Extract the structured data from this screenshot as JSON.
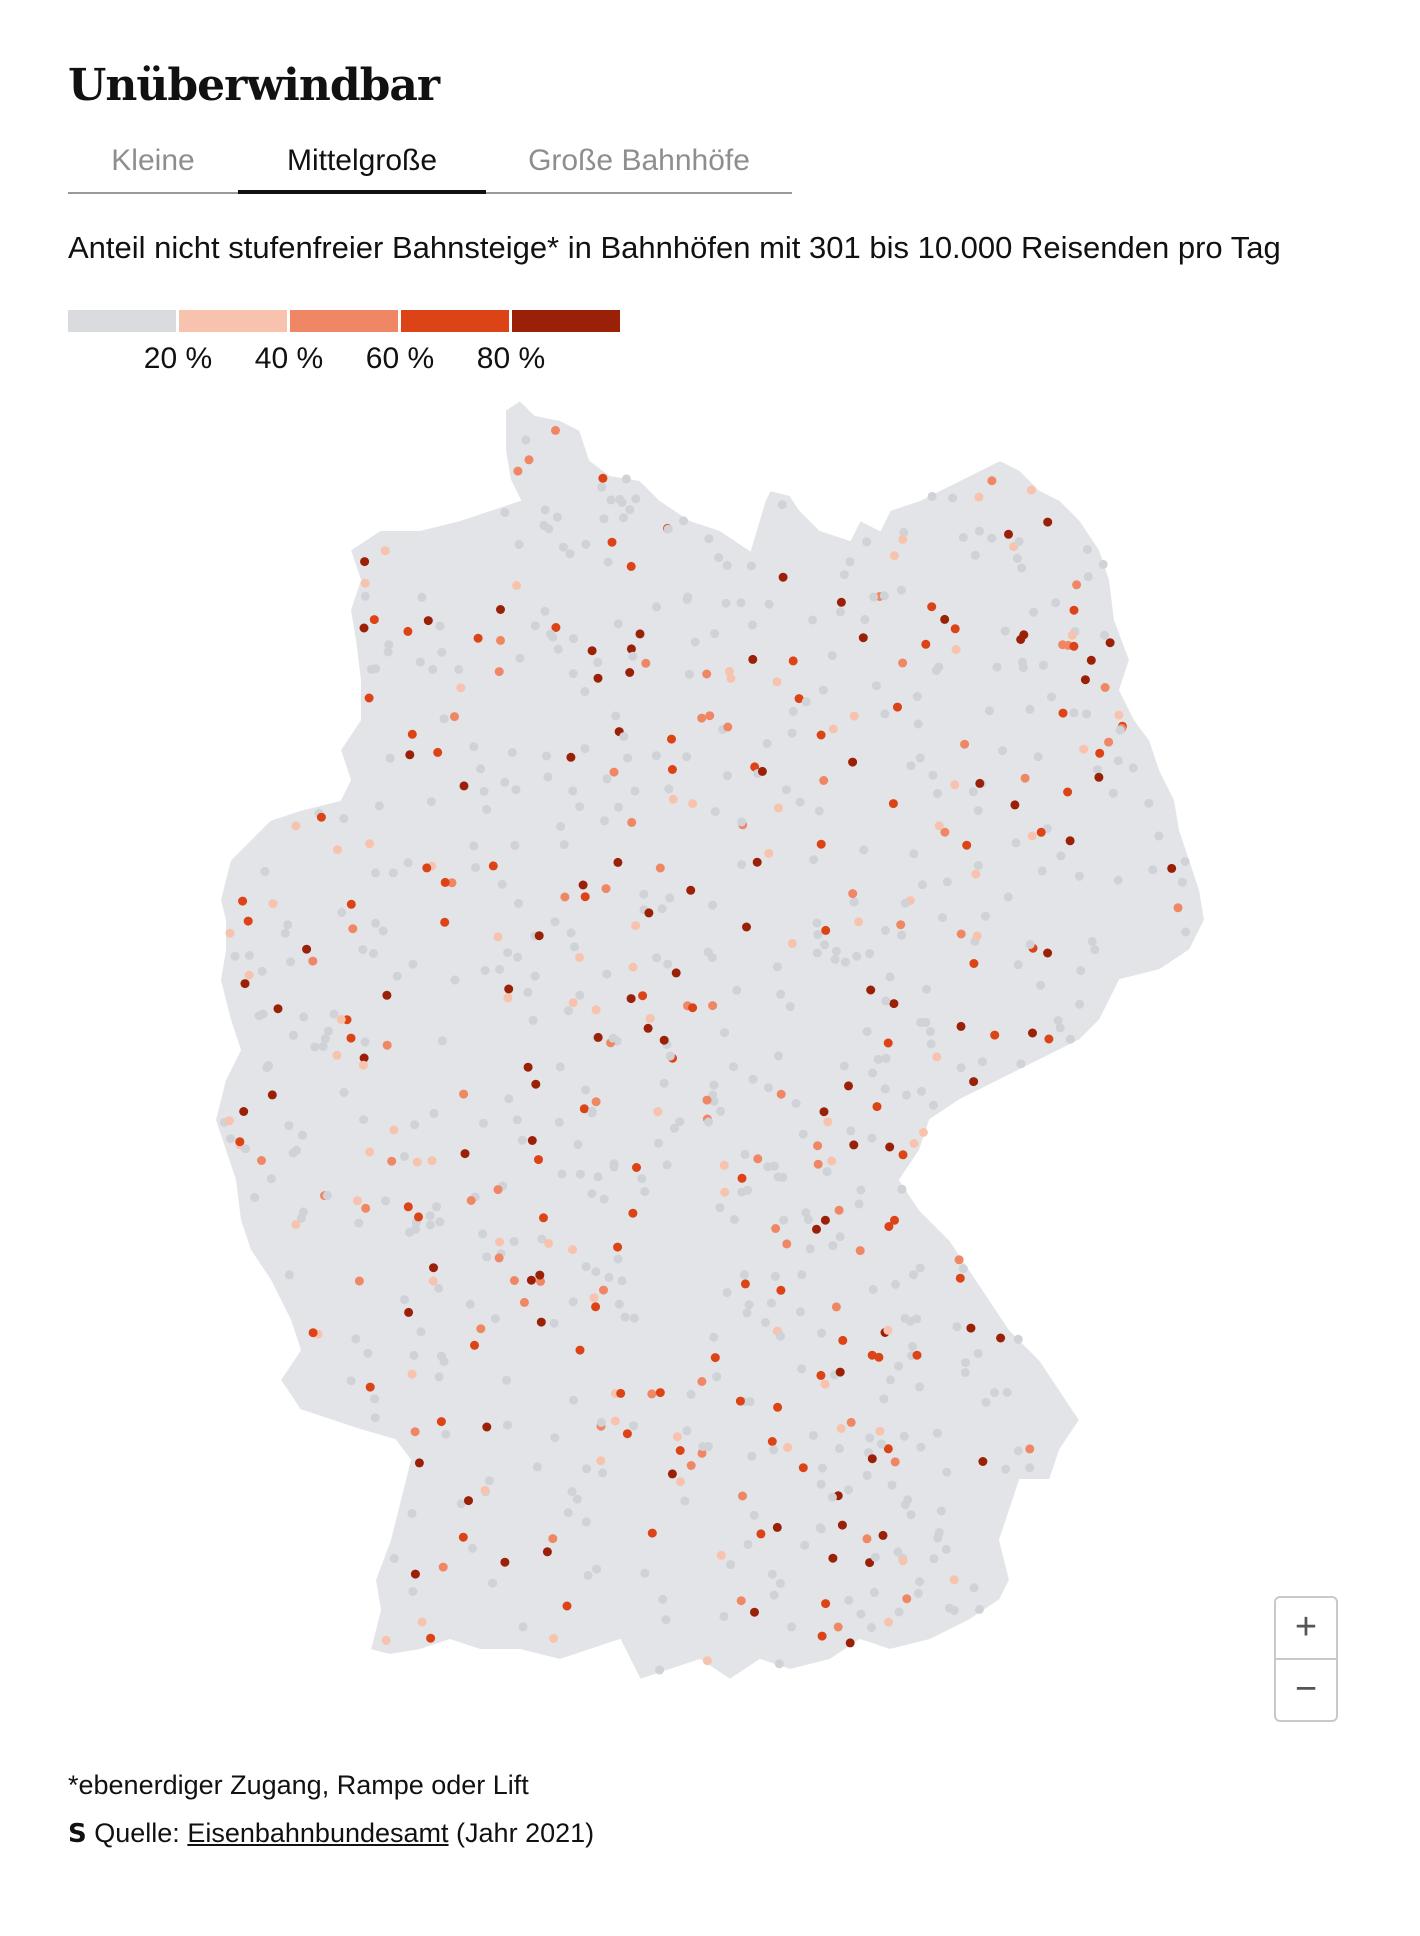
{
  "title": "Unüberwindbar",
  "tabs": [
    {
      "label": "Kleine",
      "active": false
    },
    {
      "label": "Mittelgroße",
      "active": true
    },
    {
      "label": "Große Bahnhöfe",
      "active": false
    }
  ],
  "subtitle": "Anteil nicht stufenfreier Bahnsteige* in Bahnhöfen mit 301 bis 10.000 Reisenden pro Tag",
  "legend": {
    "colors": [
      "#d9dbde",
      "#f8c3ae",
      "#ef8765",
      "#dc4316",
      "#9a2008"
    ],
    "ticks": [
      "20 %",
      "40 %",
      "60 %",
      "80 %"
    ]
  },
  "zoom": {
    "in_label": "+",
    "out_label": "−"
  },
  "footnote": "*ebenerdiger Zugang, Rampe oder Lift",
  "source": {
    "logo": "S",
    "prefix": "Quelle:",
    "link_text": "Eisenbahnbundesamt",
    "suffix": "(Jahr 2021)"
  }
}
